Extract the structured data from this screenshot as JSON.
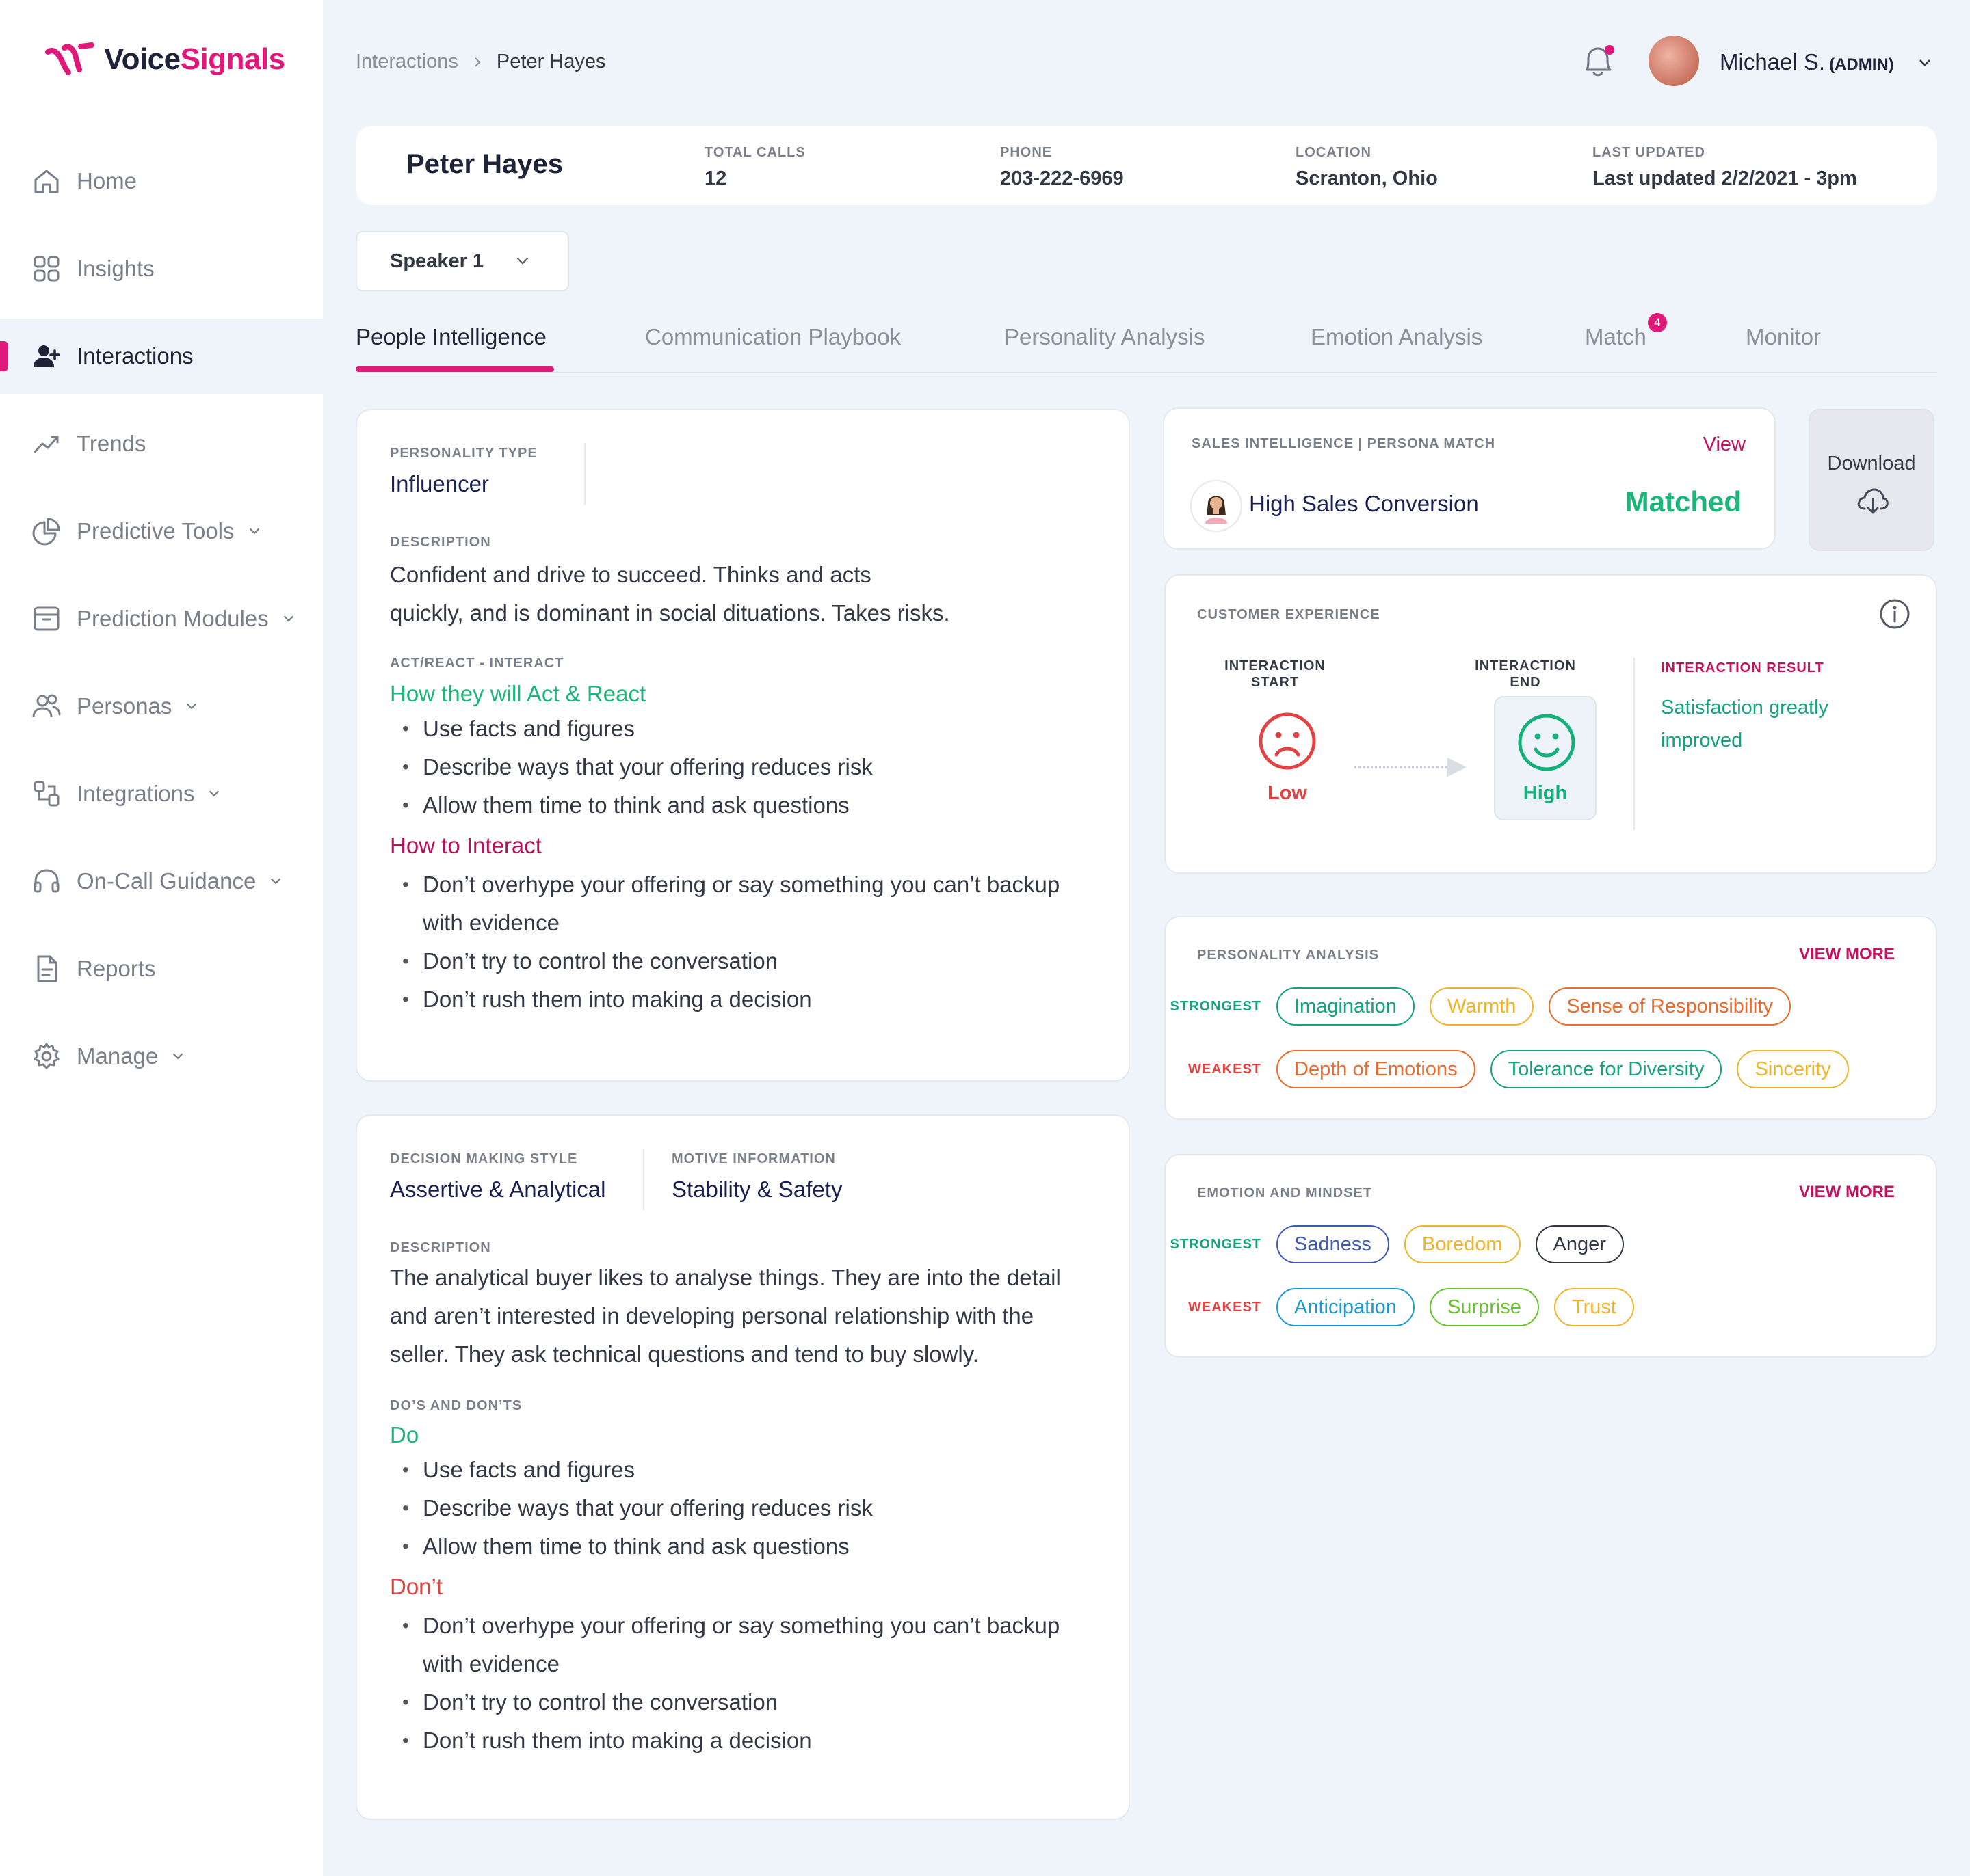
{
  "brand": {
    "name_part1": "Voice",
    "name_part2": "Signals",
    "accent": "#e0187a"
  },
  "sidebar": {
    "items": [
      {
        "label": "Home",
        "icon": "home-icon",
        "chevron": false,
        "active": false
      },
      {
        "label": "Insights",
        "icon": "grid-icon",
        "chevron": false,
        "active": false
      },
      {
        "label": "Interactions",
        "icon": "user-add-icon",
        "chevron": false,
        "active": true
      },
      {
        "label": "Trends",
        "icon": "trend-icon",
        "chevron": false,
        "active": false
      },
      {
        "label": "Predictive Tools",
        "icon": "pie-chart-icon",
        "chevron": true,
        "active": false
      },
      {
        "label": "Prediction Modules",
        "icon": "archive-icon",
        "chevron": true,
        "active": false
      },
      {
        "label": "Personas",
        "icon": "users-icon",
        "chevron": true,
        "active": false
      },
      {
        "label": "Integrations",
        "icon": "integrations-icon",
        "chevron": true,
        "active": false
      },
      {
        "label": "On-Call Guidance",
        "icon": "headset-icon",
        "chevron": true,
        "active": false
      },
      {
        "label": "Reports",
        "icon": "document-icon",
        "chevron": false,
        "active": false
      },
      {
        "label": "Manage",
        "icon": "gear-icon",
        "chevron": true,
        "active": false
      }
    ]
  },
  "breadcrumb": {
    "parent": "Interactions",
    "current": "Peter Hayes"
  },
  "user": {
    "name": "Michael S.",
    "role": "(ADMIN)"
  },
  "header": {
    "name": "Peter Hayes",
    "fields": [
      {
        "label": "TOTAL CALLS",
        "value": "12"
      },
      {
        "label": "PHONE",
        "value": "203-222-6969"
      },
      {
        "label": "LOCATION",
        "value": "Scranton, Ohio"
      },
      {
        "label": "LAST UPDATED",
        "value": "Last updated 2/2/2021 - 3pm"
      }
    ]
  },
  "speaker_select": {
    "value": "Speaker 1"
  },
  "tabs": [
    {
      "label": "People Intelligence",
      "active": true
    },
    {
      "label": "Communication Playbook"
    },
    {
      "label": "Personality Analysis"
    },
    {
      "label": "Emotion Analysis"
    },
    {
      "label": "Match",
      "badge": "4"
    },
    {
      "label": "Monitor"
    }
  ],
  "personality_card": {
    "type_label": "PERSONALITY TYPE",
    "type_value": "Influencer",
    "desc_label": "DESCRIPTION",
    "desc_line1": "Confident and drive to succeed.  Thinks and acts",
    "desc_line2": "quickly, and is dominant in social dituations.  Takes risks.",
    "act_label": "ACT/REACT - INTERACT",
    "act_heading": "How they will Act & React",
    "act_items": [
      "Use facts and figures",
      "Describe ways that your offering reduces risk",
      "Allow them time to think and ask questions"
    ],
    "interact_heading": "How to Interact",
    "interact_items": [
      "Don’t overhype your offering or say something you can’t backup with evidence",
      "Don’t try to control the conversation",
      "Don’t rush them into making a decision"
    ]
  },
  "decision_card": {
    "style_label": "DECISION MAKING STYLE",
    "style_value": "Assertive & Analytical",
    "motive_label": "MOTIVE INFORMATION",
    "motive_value": "Stability & Safety",
    "desc_label": "DESCRIPTION",
    "desc_line1": "The analytical buyer likes to analyse things. They are into the detail",
    "desc_line2": "and aren’t interested in developing personal relationship with the",
    "desc_line3": "seller. They ask technical questions and tend to buy slowly.",
    "dos_label": "DO’S AND DON’TS",
    "do_heading": "Do",
    "do_items": [
      "Use facts and figures",
      "Describe ways that your offering reduces risk",
      "Allow them time to think and ask questions"
    ],
    "dont_heading": "Don’t",
    "dont_items": [
      "Don’t overhype your offering or say something you can’t backup with evidence",
      "Don’t try to control the conversation",
      "Don’t rush them into making a decision"
    ]
  },
  "sales_card": {
    "label": "SALES INTELLIGENCE | PERSONA MATCH",
    "view": "View",
    "persona": "High Sales Conversion",
    "status": "Matched"
  },
  "download": {
    "label": "Download"
  },
  "cx_card": {
    "label": "CUSTOMER EXPERIENCE",
    "start_label_1": "INTERACTION",
    "start_label_2": "START",
    "start_value": "Low",
    "end_label_1": "INTERACTION",
    "end_label_2": "END",
    "end_value": "High",
    "result_label": "INTERACTION RESULT",
    "result_line1": "Satisfaction greatly",
    "result_line2": "improved"
  },
  "personality_analysis": {
    "label": "PERSONALITY ANALYSIS",
    "view_more": "VIEW MORE",
    "strongest_label": "STRONGEST",
    "weakest_label": "WEAKEST",
    "strongest": [
      {
        "text": "Imagination",
        "color": "#14a37f"
      },
      {
        "text": "Warmth",
        "color": "#f0b429"
      },
      {
        "text": "Sense of Responsibility",
        "color": "#ec6b2d"
      }
    ],
    "weakest": [
      {
        "text": "Depth of Emotions",
        "color": "#ec6b2d"
      },
      {
        "text": "Tolerance for Diversity",
        "color": "#14a37f"
      },
      {
        "text": "Sincerity",
        "color": "#f0b429"
      }
    ]
  },
  "emotion_mindset": {
    "label": "EMOTION AND MINDSET",
    "view_more": "VIEW MORE",
    "strongest_label": "STRONGEST",
    "weakest_label": "WEAKEST",
    "strongest": [
      {
        "text": "Sadness",
        "color": "#3f5bb8"
      },
      {
        "text": "Boredom",
        "color": "#f0b429"
      },
      {
        "text": "Anger",
        "color": "#333845"
      }
    ],
    "weakest": [
      {
        "text": "Anticipation",
        "color": "#1a9bcf"
      },
      {
        "text": "Surprise",
        "color": "#69c22d"
      },
      {
        "text": "Trust",
        "color": "#f0b429"
      }
    ]
  }
}
